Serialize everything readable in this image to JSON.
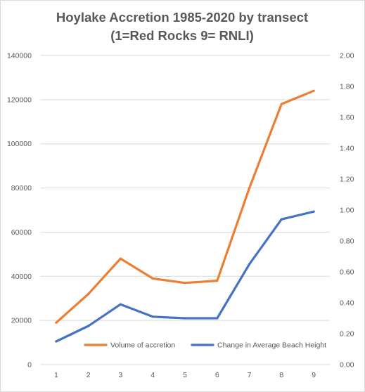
{
  "chart_data": {
    "type": "line",
    "title": "Hoylake Accretion 1985-2020 by transect",
    "subtitle": "(1=Red Rocks 9= RNLI)",
    "xlabel": "",
    "ylabel": "",
    "categories": [
      "1",
      "2",
      "3",
      "4",
      "5",
      "6",
      "7",
      "8",
      "9"
    ],
    "ylim": [
      0,
      140000
    ],
    "y2lim": [
      0,
      2.0
    ],
    "yticks": [
      "0",
      "20000",
      "40000",
      "60000",
      "80000",
      "100000",
      "120000",
      "140000"
    ],
    "y2ticks": [
      "0.00",
      "0.20",
      "0.40",
      "0.60",
      "0.80",
      "1.00",
      "1.20",
      "1.40",
      "1.60",
      "1.80",
      "2.00"
    ],
    "grid": true,
    "legend_position": "bottom",
    "series": [
      {
        "name": "Volume of accretion",
        "axis": "left",
        "color": "#ed7d31",
        "values": [
          19000,
          32000,
          48000,
          39000,
          37000,
          38000,
          80000,
          118000,
          124000
        ]
      },
      {
        "name": "Change in Average Beach Height",
        "axis": "right",
        "color": "#4472c4",
        "values": [
          0.15,
          0.25,
          0.39,
          0.31,
          0.3,
          0.3,
          0.65,
          0.94,
          0.99
        ]
      }
    ]
  }
}
